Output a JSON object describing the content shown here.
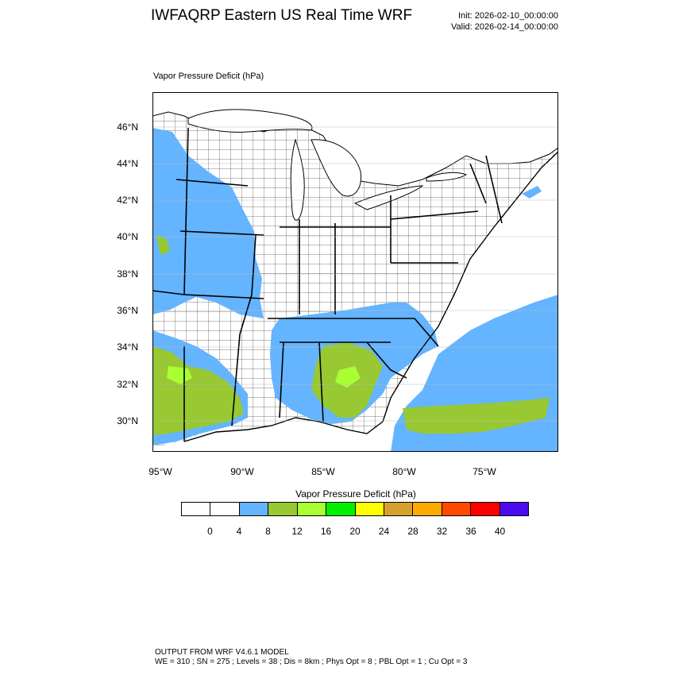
{
  "header": {
    "title": "IWFAQRP Eastern US Real Time WRF",
    "init": "Init: 2026-02-10_00:00:00",
    "valid": "Valid: 2026-02-14_00:00:00"
  },
  "map": {
    "variable_label": "Vapor Pressure Deficit   (hPa)",
    "lat_labels": [
      "46°N",
      "44°N",
      "42°N",
      "40°N",
      "38°N",
      "36°N",
      "34°N",
      "32°N",
      "30°N"
    ],
    "lon_labels": [
      "95°W",
      "90°W",
      "85°W",
      "80°W",
      "75°W"
    ]
  },
  "colorbar": {
    "title": "Vapor Pressure Deficit  (hPa)",
    "colors": [
      "#ffffff",
      "#ffffff",
      "#64b4ff",
      "#98c832",
      "#aaff32",
      "#00f000",
      "#ffff00",
      "#d4a22c",
      "#ffaa00",
      "#ff4a00",
      "#ff0000",
      "#4b0af0"
    ],
    "labels": [
      "0",
      "4",
      "8",
      "12",
      "16",
      "20",
      "24",
      "28",
      "32",
      "36",
      "40"
    ]
  },
  "footer": {
    "line1": "OUTPUT FROM WRF V4.6.1 MODEL",
    "line2": "WE = 310 ; SN = 275 ; Levels = 38 ; Dis = 8km ; Phys Opt = 8 ; PBL Opt = 1 ; Cu Opt = 3"
  }
}
